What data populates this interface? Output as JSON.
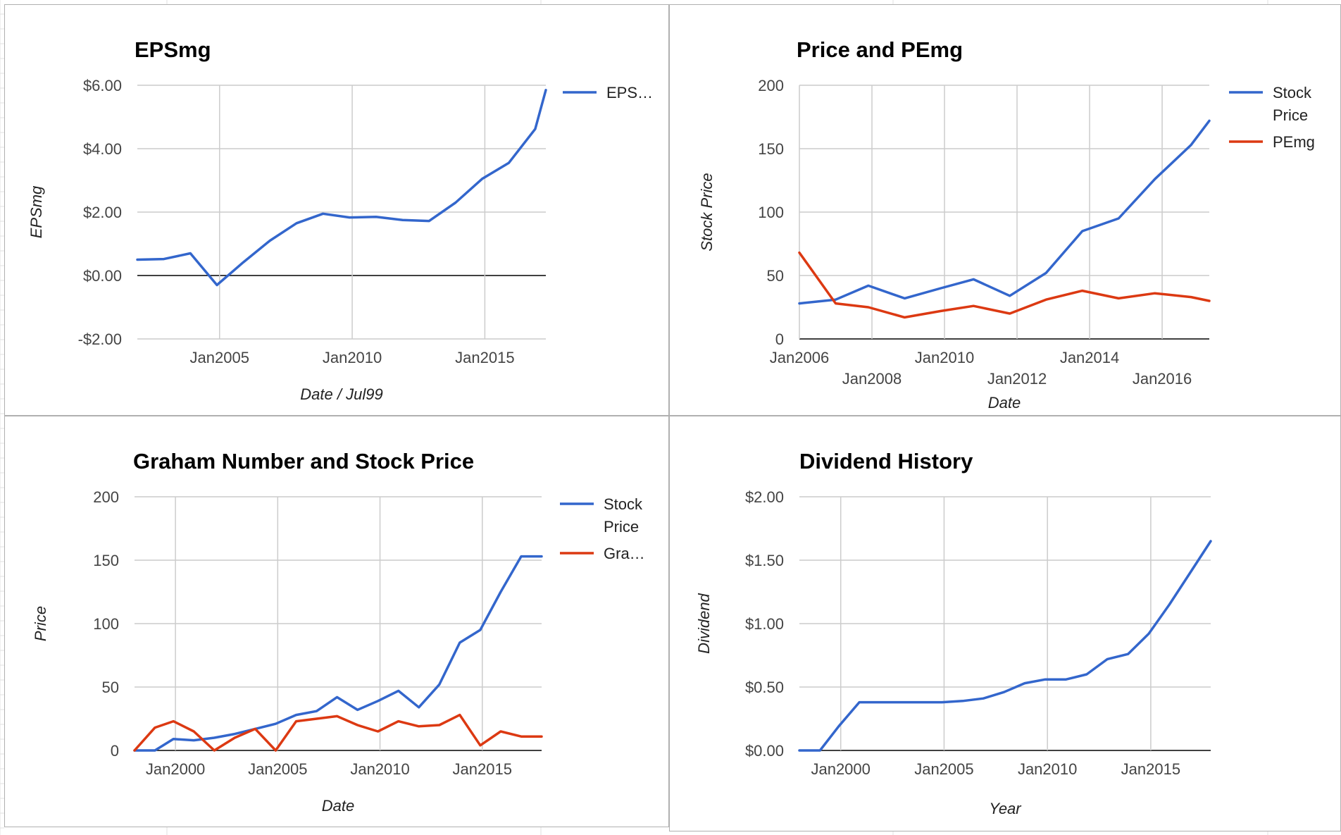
{
  "colors": {
    "blue": "#3366cc",
    "red": "#dc3912",
    "grid": "#cccccc",
    "zero": "#000000"
  },
  "chart_data": [
    {
      "type": "line",
      "title": "EPSmg",
      "xlabel": "Date / Jul99",
      "ylabel": "EPSmg",
      "x_is_date": true,
      "xlim": [
        2001.9,
        2017.3
      ],
      "ylim": [
        -2,
        6
      ],
      "x_ticks": [
        {
          "x": 2005,
          "label": "Jan2005"
        },
        {
          "x": 2010,
          "label": "Jan2010"
        },
        {
          "x": 2015,
          "label": "Jan2015"
        }
      ],
      "y_ticks": [
        {
          "v": -2,
          "label": "-$2.00"
        },
        {
          "v": 0,
          "label": "$0.00"
        },
        {
          "v": 2,
          "label": "$2.00"
        },
        {
          "v": 4,
          "label": "$4.00"
        },
        {
          "v": 6,
          "label": "$6.00"
        }
      ],
      "legend": "right",
      "series": [
        {
          "name": "EPS…",
          "color": "#3366cc",
          "x": [
            2001.9,
            2002.9,
            2003.9,
            2004.9,
            2005.9,
            2006.9,
            2007.9,
            2008.9,
            2009.9,
            2010.9,
            2011.9,
            2012.9,
            2013.9,
            2014.9,
            2015.9,
            2016.9,
            2017.3
          ],
          "y": [
            0.5,
            0.52,
            0.7,
            -0.3,
            0.42,
            1.1,
            1.65,
            1.95,
            1.83,
            1.85,
            1.75,
            1.72,
            2.3,
            3.05,
            3.55,
            4.62,
            5.85
          ]
        }
      ]
    },
    {
      "type": "line",
      "title": "Price and PEmg",
      "xlabel": "Date",
      "ylabel": "Stock Price",
      "x_is_date": true,
      "xlim": [
        2006,
        2017.3
      ],
      "ylim": [
        0,
        200
      ],
      "x_ticks": [
        {
          "x": 2006,
          "label": "Jan2006",
          "row": 0
        },
        {
          "x": 2008,
          "label": "Jan2008",
          "row": 1
        },
        {
          "x": 2010,
          "label": "Jan2010",
          "row": 0
        },
        {
          "x": 2012,
          "label": "Jan2012",
          "row": 1
        },
        {
          "x": 2014,
          "label": "Jan2014",
          "row": 0
        },
        {
          "x": 2016,
          "label": "Jan2016",
          "row": 1
        }
      ],
      "y_ticks": [
        {
          "v": 0,
          "label": "0"
        },
        {
          "v": 50,
          "label": "50"
        },
        {
          "v": 100,
          "label": "100"
        },
        {
          "v": 150,
          "label": "150"
        },
        {
          "v": 200,
          "label": "200"
        }
      ],
      "legend": "right",
      "series": [
        {
          "name": "Stock Price",
          "color": "#3366cc",
          "x": [
            2006.0,
            2007.0,
            2007.9,
            2008.9,
            2009.9,
            2010.8,
            2011.8,
            2012.8,
            2013.8,
            2014.8,
            2015.8,
            2016.8,
            2017.3
          ],
          "y": [
            28,
            31,
            42,
            32,
            40,
            47,
            34,
            52,
            85,
            95,
            126,
            153,
            172
          ]
        },
        {
          "name": "PEmg",
          "color": "#dc3912",
          "x": [
            2006.0,
            2007.0,
            2007.9,
            2008.9,
            2009.9,
            2010.8,
            2011.8,
            2012.8,
            2013.8,
            2014.8,
            2015.8,
            2016.8,
            2017.3
          ],
          "y": [
            68,
            28,
            25,
            17,
            22,
            26,
            20,
            31,
            38,
            32,
            36,
            33,
            30
          ]
        }
      ]
    },
    {
      "type": "line",
      "title": "Graham Number and Stock Price",
      "xlabel": "Date",
      "ylabel": "Price",
      "x_is_date": true,
      "xlim": [
        1998,
        2017.9
      ],
      "ylim": [
        0,
        200
      ],
      "x_ticks": [
        {
          "x": 2000,
          "label": "Jan2000"
        },
        {
          "x": 2005,
          "label": "Jan2005"
        },
        {
          "x": 2010,
          "label": "Jan2010"
        },
        {
          "x": 2015,
          "label": "Jan2015"
        }
      ],
      "y_ticks": [
        {
          "v": 0,
          "label": "0"
        },
        {
          "v": 50,
          "label": "50"
        },
        {
          "v": 100,
          "label": "100"
        },
        {
          "v": 150,
          "label": "150"
        },
        {
          "v": 200,
          "label": "200"
        }
      ],
      "legend": "right",
      "series": [
        {
          "name": "Stock Price",
          "color": "#3366cc",
          "x": [
            1998.0,
            1999.0,
            1999.9,
            2000.9,
            2001.9,
            2002.9,
            2003.9,
            2004.9,
            2005.9,
            2006.9,
            2007.9,
            2008.9,
            2009.9,
            2010.9,
            2011.9,
            2012.9,
            2013.9,
            2014.9,
            2015.9,
            2016.9,
            2017.9
          ],
          "y": [
            0,
            0,
            9,
            8,
            10,
            13,
            17,
            21,
            28,
            31,
            42,
            32,
            39,
            47,
            34,
            52,
            85,
            95,
            125,
            153,
            153
          ]
        },
        {
          "name": "Gra…",
          "color": "#dc3912",
          "x": [
            1998.0,
            1999.0,
            1999.9,
            2000.9,
            2001.9,
            2002.9,
            2003.9,
            2004.9,
            2005.9,
            2006.9,
            2007.9,
            2008.9,
            2009.9,
            2010.9,
            2011.9,
            2012.9,
            2013.9,
            2014.9,
            2015.9,
            2016.9,
            2017.9
          ],
          "y": [
            0,
            18,
            23,
            15,
            0,
            10,
            17,
            0,
            23,
            25,
            27,
            20,
            15,
            23,
            19,
            20,
            28,
            4,
            15,
            11,
            11
          ]
        }
      ]
    },
    {
      "type": "line",
      "title": "Dividend History",
      "xlabel": "Year",
      "ylabel": "Dividend",
      "x_is_date": true,
      "xlim": [
        1998,
        2017.9
      ],
      "ylim": [
        0,
        2
      ],
      "x_ticks": [
        {
          "x": 2000,
          "label": "Jan2000"
        },
        {
          "x": 2005,
          "label": "Jan2005"
        },
        {
          "x": 2010,
          "label": "Jan2010"
        },
        {
          "x": 2015,
          "label": "Jan2015"
        }
      ],
      "y_ticks": [
        {
          "v": 0,
          "label": "$0.00"
        },
        {
          "v": 0.5,
          "label": "$0.50"
        },
        {
          "v": 1.0,
          "label": "$1.00"
        },
        {
          "v": 1.5,
          "label": "$1.50"
        },
        {
          "v": 2.0,
          "label": "$2.00"
        }
      ],
      "legend": "none",
      "series": [
        {
          "name": "",
          "color": "#3366cc",
          "x": [
            1998.0,
            1999.0,
            1999.9,
            2000.9,
            2001.9,
            2002.9,
            2003.9,
            2004.9,
            2005.9,
            2006.9,
            2007.9,
            2008.9,
            2009.9,
            2010.9,
            2011.9,
            2012.9,
            2013.9,
            2014.9,
            2015.9,
            2016.9,
            2017.9
          ],
          "y": [
            0,
            0,
            0.19,
            0.38,
            0.38,
            0.38,
            0.38,
            0.38,
            0.39,
            0.41,
            0.46,
            0.53,
            0.56,
            0.56,
            0.6,
            0.72,
            0.76,
            0.92,
            1.15,
            1.4,
            1.65
          ]
        }
      ]
    }
  ]
}
